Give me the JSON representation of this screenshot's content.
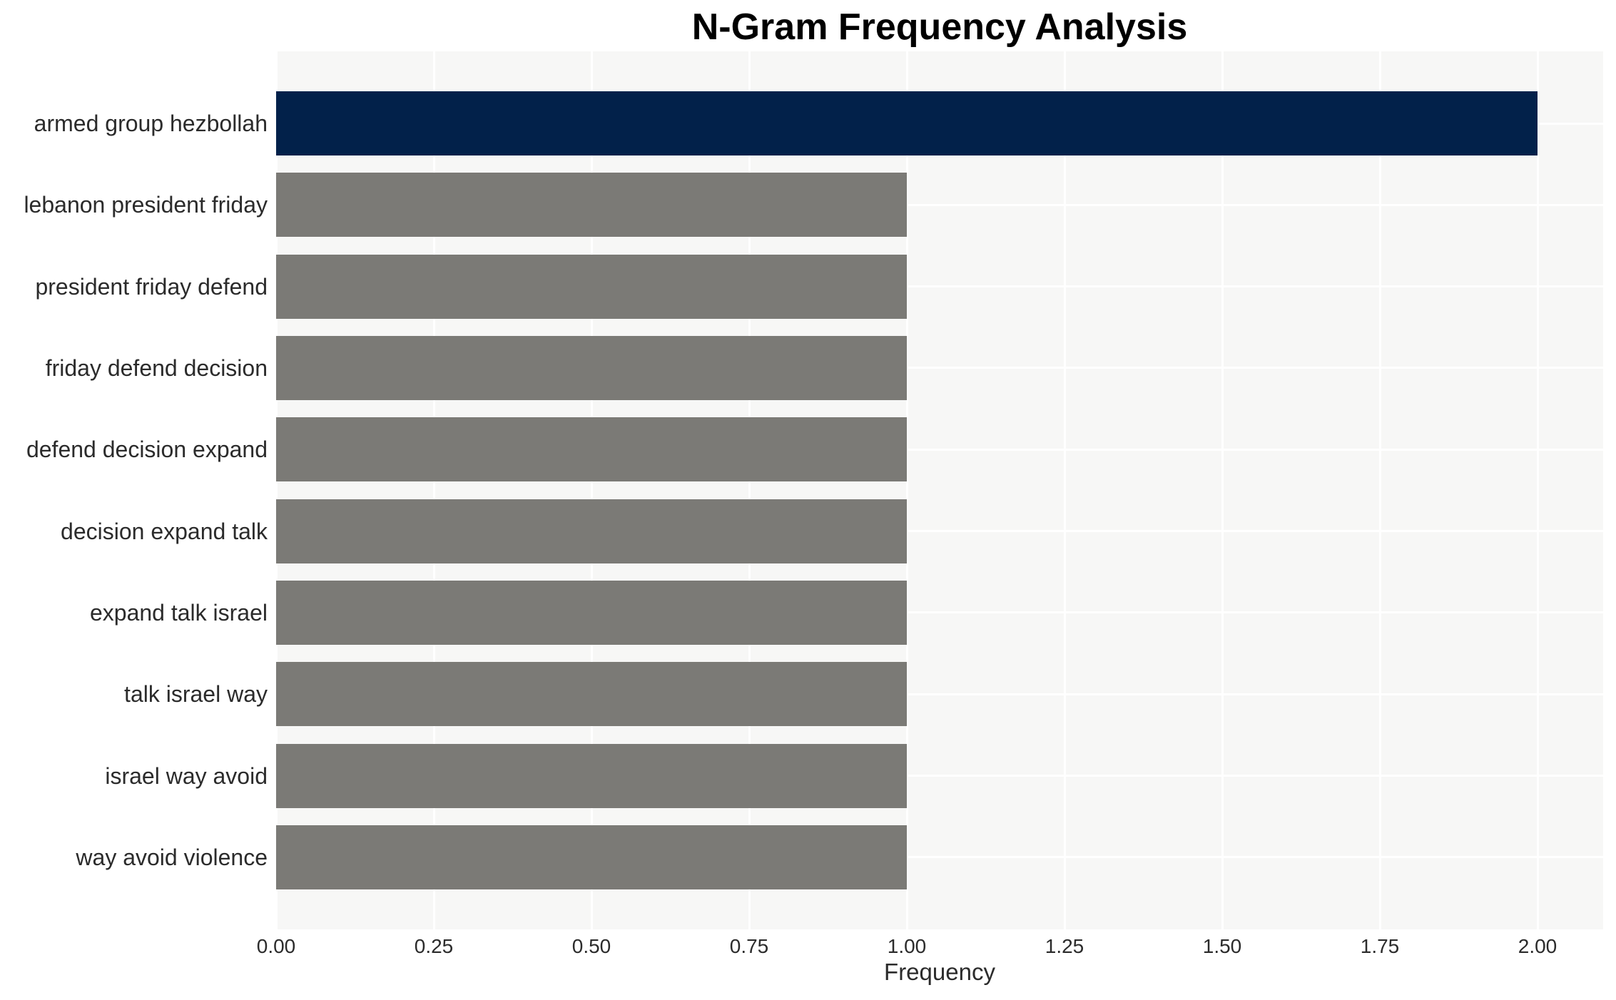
{
  "chart_data": {
    "type": "bar",
    "orientation": "horizontal",
    "title": "N-Gram Frequency Analysis",
    "xlabel": "Frequency",
    "ylabel": "",
    "categories": [
      "armed group hezbollah",
      "lebanon president friday",
      "president friday defend",
      "friday defend decision",
      "defend decision expand",
      "decision expand talk",
      "expand talk israel",
      "talk israel way",
      "israel way avoid",
      "way avoid violence"
    ],
    "values": [
      2.0,
      1.0,
      1.0,
      1.0,
      1.0,
      1.0,
      1.0,
      1.0,
      1.0,
      1.0
    ],
    "bar_colors": [
      "#02214a",
      "#7b7a76",
      "#7b7a76",
      "#7b7a76",
      "#7b7a76",
      "#7b7a76",
      "#7b7a76",
      "#7b7a76",
      "#7b7a76",
      "#7b7a76"
    ],
    "xlim": [
      0,
      2.1
    ],
    "xticks": [
      "0.00",
      "0.25",
      "0.50",
      "0.75",
      "1.00",
      "1.25",
      "1.50",
      "1.75",
      "2.00"
    ],
    "xtick_values": [
      0,
      0.25,
      0.5,
      0.75,
      1.0,
      1.25,
      1.5,
      1.75,
      2.0
    ],
    "grid": "on",
    "legend": "none",
    "colors": {
      "highlight_bar": "#02214a",
      "default_bar": "#7b7a76",
      "plot_background": "#f7f7f6",
      "figure_background": "#ffffff",
      "gridline": "#ffffff",
      "axis_text": "#2b2b2b",
      "title_text": "#000000"
    }
  }
}
